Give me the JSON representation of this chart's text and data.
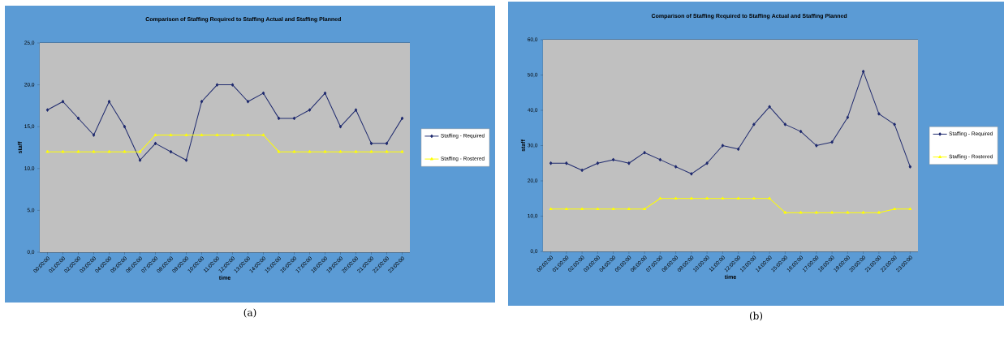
{
  "chart_data": [
    {
      "type": "line",
      "title": "Comparison of Staffing Required to Staffing Actual and Staffing Planned",
      "xlabel": "time",
      "ylabel": "staff",
      "categories": [
        "00:00:00",
        "01:00:00",
        "02:00:00",
        "03:00:00",
        "04:00:00",
        "05:00:00",
        "06:00:00",
        "07:00:00",
        "08:00:00",
        "09:00:00",
        "10:00:00",
        "11:00:00",
        "12:00:00",
        "13:00:00",
        "14:00:00",
        "15:00:00",
        "16:00:00",
        "17:00:00",
        "18:00:00",
        "19:00:00",
        "20:00:00",
        "21:00:00",
        "22:00:00",
        "23:00:00"
      ],
      "series": [
        {
          "name": "Staffing - Required",
          "color": "#1f2a6e",
          "marker": "diamond",
          "values": [
            17,
            18,
            16,
            14,
            18,
            15,
            11,
            13,
            12,
            11,
            18,
            20,
            20,
            18,
            19,
            16,
            16,
            17,
            19,
            15,
            17,
            13,
            13,
            16
          ]
        },
        {
          "name": "Staffing - Rostered",
          "color": "#ffff00",
          "marker": "triangle",
          "values": [
            12,
            12,
            12,
            12,
            12,
            12,
            12,
            14,
            14,
            14,
            14,
            14,
            14,
            14,
            14,
            12,
            12,
            12,
            12,
            12,
            12,
            12,
            12,
            12
          ]
        }
      ],
      "ylim": [
        0,
        25
      ],
      "yticks": [
        {
          "value": 0,
          "label": "0,0"
        },
        {
          "value": 5,
          "label": "5,0"
        },
        {
          "value": 10,
          "label": "10,0"
        },
        {
          "value": 15,
          "label": "15,0"
        },
        {
          "value": 20,
          "label": "20,0"
        },
        {
          "value": 25,
          "label": "25,0"
        }
      ],
      "grid": "y",
      "legend": "right",
      "annotations": [
        "(a)"
      ]
    },
    {
      "type": "line",
      "title": "Comparison of Staffing Required to Staffing Actual and Staffing Planned",
      "xlabel": "time",
      "ylabel": "staff",
      "categories": [
        "00:00:00",
        "01:00:00",
        "02:00:00",
        "03:00:00",
        "04:00:00",
        "05:00:00",
        "06:00:00",
        "07:00:00",
        "08:00:00",
        "09:00:00",
        "10:00:00",
        "11:00:00",
        "12:00:00",
        "13:00:00",
        "14:00:00",
        "15:00:00",
        "16:00:00",
        "17:00:00",
        "18:00:00",
        "19:00:00",
        "20:00:00",
        "21:00:00",
        "22:00:00",
        "23:00:00"
      ],
      "series": [
        {
          "name": "Staffing - Required",
          "color": "#1f2a6e",
          "marker": "diamond",
          "values": [
            25,
            25,
            23,
            25,
            26,
            25,
            28,
            26,
            24,
            22,
            25,
            30,
            29,
            36,
            41,
            36,
            34,
            30,
            31,
            38,
            51,
            39,
            36,
            24
          ]
        },
        {
          "name": "Staffing - Rostered",
          "color": "#ffff00",
          "marker": "triangle",
          "values": [
            12,
            12,
            12,
            12,
            12,
            12,
            12,
            15,
            15,
            15,
            15,
            15,
            15,
            15,
            15,
            11,
            11,
            11,
            11,
            11,
            11,
            11,
            12,
            12
          ]
        }
      ],
      "ylim": [
        0,
        60
      ],
      "yticks": [
        {
          "value": 0,
          "label": "0,0"
        },
        {
          "value": 10,
          "label": "10,0"
        },
        {
          "value": 20,
          "label": "20,0"
        },
        {
          "value": 30,
          "label": "30,0"
        },
        {
          "value": 40,
          "label": "40,0"
        },
        {
          "value": 50,
          "label": "50,0"
        },
        {
          "value": 60,
          "label": "60,0"
        }
      ],
      "grid": "y",
      "legend": "right",
      "annotations": [
        "(b)"
      ]
    }
  ]
}
